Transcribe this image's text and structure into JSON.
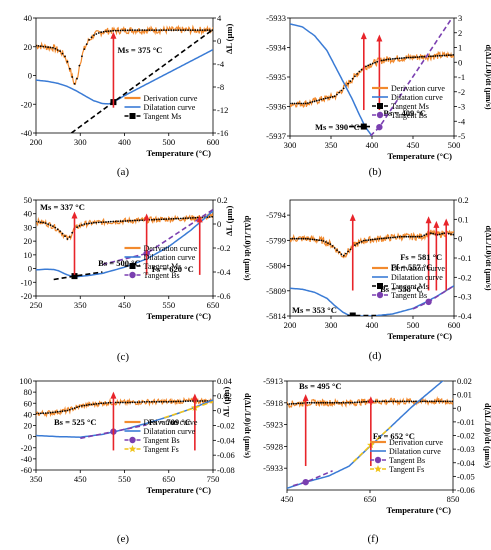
{
  "figure": {
    "colors": {
      "derivation": "#f28a2e",
      "dilatation": "#3a7bd5",
      "dots": "#000000",
      "annotation_arrow": "#e8242a",
      "tangent_ms": "#000000",
      "tangent_bs": "#7a3fb0",
      "tangent_fs": "#f0c419"
    }
  },
  "chart_data": [
    {
      "type": "line",
      "panel_label": "(a)",
      "xlabel": "Temperature (°C)",
      "ylabel": "ΔL (µm)",
      "y2label": "",
      "xlim": [
        200,
        600
      ],
      "ylim": [
        -40,
        40
      ],
      "y2lim": [
        -16,
        4
      ],
      "xticks": [
        "200",
        "300",
        "400",
        "500",
        "600"
      ],
      "yticks": [
        "-40",
        "-20",
        "0",
        "20",
        "40"
      ],
      "y2ticks": [
        "-16",
        "-12",
        "-8",
        "-4",
        "0",
        "4"
      ],
      "series": [
        {
          "name": "Derivation curve",
          "axis": "y2",
          "style": "noisy",
          "x": [
            200,
            220,
            240,
            255,
            265,
            272,
            278,
            283,
            288,
            293,
            300,
            310,
            320,
            330,
            345,
            360,
            380,
            420,
            480,
            540,
            600
          ],
          "y": [
            -0.8,
            -1,
            -1.2,
            -1.8,
            -2.6,
            -3.8,
            -5.2,
            -6.6,
            -7.6,
            -6.5,
            -3.5,
            -1.2,
            0.2,
            1,
            1.5,
            1.7,
            1.8,
            1.9,
            1.9,
            1.9,
            1.9
          ]
        },
        {
          "name": "Dilatation curve",
          "axis": "y",
          "style": "smooth",
          "x": [
            200,
            225,
            250,
            270,
            290,
            310,
            330,
            350,
            365,
            375,
            400,
            450,
            500,
            550,
            600
          ],
          "y": [
            -3.2,
            -4,
            -5.5,
            -7.5,
            -10.5,
            -14,
            -17.5,
            -19.5,
            -19.8,
            -18.5,
            -14,
            -6,
            2,
            10,
            18
          ]
        },
        {
          "name": "Tangent Ms",
          "axis": "y",
          "style": "tangent",
          "x": [
            280,
            375,
            600
          ],
          "y": [
            -40,
            -18.5,
            32
          ]
        }
      ],
      "annotations": [
        {
          "text": "Ms = 375 °C",
          "arrow_x": 375
        }
      ]
    },
    {
      "type": "line",
      "panel_label": "(b)",
      "xlabel": "Temperature (°C)",
      "ylabel": "ΔL (µm)",
      "y2label": "d(ΔL/L0)/dt (µm/s)",
      "xlim": [
        300,
        500
      ],
      "ylim": [
        -5937,
        -5933
      ],
      "y2lim": [
        -5,
        3
      ],
      "xticks": [
        "300",
        "350",
        "400",
        "450",
        "500"
      ],
      "yticks": [
        "-5937",
        "-5936",
        "-5935",
        "-5934",
        "-5933"
      ],
      "y2ticks": [
        "-5",
        "-4",
        "-3",
        "-2",
        "-1",
        "0",
        "1",
        "2",
        "3"
      ],
      "series": [
        {
          "name": "Derivation curve",
          "axis": "y2",
          "style": "noisy",
          "x": [
            300,
            320,
            340,
            355,
            365,
            375,
            385,
            392,
            400,
            410,
            420,
            440,
            470,
            500
          ],
          "y": [
            -2.8,
            -2.8,
            -2.5,
            -2.3,
            -1.8,
            -1.2,
            -0.6,
            -0.3,
            -0.1,
            0.1,
            0.2,
            0.3,
            0.4,
            0.5
          ]
        },
        {
          "name": "Dilatation curve",
          "axis": "y",
          "style": "smooth",
          "x": [
            300,
            315,
            330,
            345,
            360,
            375,
            385,
            392,
            400
          ],
          "y": [
            -5933.2,
            -5933.3,
            -5933.6,
            -5934.1,
            -5934.9,
            -5935.7,
            -5936.3,
            -5936.7,
            -5937
          ]
        },
        {
          "name": "Tangent Ms",
          "axis": "y",
          "style": "tangent",
          "x": [
            372,
            390,
            398
          ],
          "y": [
            -5936.68,
            -5936.68,
            -5936.68
          ]
        },
        {
          "name": "Tangent Bs",
          "axis": "y",
          "style": "tangent",
          "x": [
            398,
            409,
            500
          ],
          "y": [
            -5937,
            -5936.7,
            -5932.9
          ]
        }
      ],
      "annotations": [
        {
          "text": "Ms = 390 °C",
          "arrow_x": 390
        },
        {
          "text": "Bs = 409 °C",
          "arrow_x": 409
        }
      ]
    },
    {
      "type": "line",
      "panel_label": "(c)",
      "xlabel": "Temperature (°C)",
      "ylabel": "ΔL (µm)",
      "y2label": "d(ΔL/L0)/dt (µm/s)",
      "xlim": [
        250,
        650
      ],
      "ylim": [
        -20,
        50
      ],
      "y2lim": [
        -0.6,
        0.2
      ],
      "xticks": [
        "250",
        "350",
        "450",
        "550",
        "650"
      ],
      "yticks": [
        "-20",
        "-10",
        "0",
        "10",
        "20",
        "30",
        "40",
        "50"
      ],
      "y2ticks": [
        "-0.6",
        "-0.4",
        "-0.2",
        "0",
        "0.2"
      ],
      "series": [
        {
          "name": "Derivation curve",
          "axis": "y2",
          "style": "noisy",
          "x": [
            250,
            270,
            290,
            305,
            315,
            322,
            328,
            335,
            345,
            360,
            380,
            420,
            480,
            540,
            600,
            650
          ],
          "y": [
            0.02,
            0.01,
            -0.02,
            -0.06,
            -0.1,
            -0.13,
            -0.1,
            -0.05,
            -0.02,
            0,
            0.01,
            0.02,
            0.03,
            0.04,
            0.05,
            0.06
          ]
        },
        {
          "name": "Dilatation curve",
          "axis": "y",
          "style": "smooth",
          "x": [
            250,
            270,
            290,
            300,
            310,
            320,
            330,
            345,
            370,
            400,
            450,
            500,
            550,
            600,
            650
          ],
          "y": [
            -1,
            -0.5,
            -0.7,
            -1.5,
            -3,
            -4.5,
            -5.5,
            -5.8,
            -5,
            -3.5,
            1,
            7,
            16,
            28,
            42
          ]
        },
        {
          "name": "Tangent Ms",
          "axis": "y",
          "style": "tangent",
          "x": [
            290,
            337,
            400
          ],
          "y": [
            -8,
            -5.5,
            -2.5
          ]
        },
        {
          "name": "Tangent Bs",
          "axis": "y",
          "style": "tangent",
          "x": [
            400,
            500,
            650
          ],
          "y": [
            3,
            11,
            43
          ]
        }
      ],
      "annotations": [
        {
          "text": "Ms = 337 °C",
          "arrow_x": 337
        },
        {
          "text": "Bs = 500 °C",
          "arrow_x": 500
        },
        {
          "text": "Fs = 620 °C",
          "arrow_x": 620
        }
      ]
    },
    {
      "type": "line",
      "panel_label": "(d)",
      "xlabel": "Temperature (°C)",
      "ylabel": "ΔL (µm)",
      "y2label": "d(ΔL/L0)/dt (µm/s)",
      "xlim": [
        200,
        600
      ],
      "ylim": [
        -5814,
        -5791
      ],
      "y2lim": [
        -0.4,
        0.2
      ],
      "xticks": [
        "200",
        "300",
        "400",
        "500",
        "600"
      ],
      "yticks": [
        "-5814",
        "-5809",
        "-5804",
        "-5799",
        "-5794"
      ],
      "y2ticks": [
        "-0.4",
        "-0.3",
        "-0.2",
        "-0.1",
        "0",
        "0.1",
        "0.2"
      ],
      "series": [
        {
          "name": "Derivation curve",
          "axis": "y2",
          "style": "noisy",
          "x": [
            200,
            240,
            280,
            300,
            315,
            330,
            345,
            360,
            380,
            420,
            470,
            520,
            540,
            560,
            580,
            600
          ],
          "y": [
            0,
            0,
            -0.01,
            -0.03,
            -0.06,
            -0.09,
            -0.06,
            -0.03,
            -0.01,
            0,
            0.01,
            0.01,
            0.03,
            0.02,
            0.03,
            0.02
          ]
        },
        {
          "name": "Dilatation curve",
          "axis": "y",
          "style": "smooth",
          "x": [
            200,
            230,
            260,
            290,
            310,
            330,
            345,
            355,
            400,
            450,
            500,
            530,
            560,
            600
          ],
          "y": [
            -5808.5,
            -5808.7,
            -5809.3,
            -5810.5,
            -5812,
            -5813.3,
            -5813.9,
            -5814,
            -5814,
            -5813.6,
            -5812.5,
            -5811.3,
            -5810,
            -5808
          ]
        },
        {
          "name": "Tangent Ms",
          "axis": "y",
          "style": "tangent",
          "x": [
            340,
            353,
            410
          ],
          "y": [
            -5813.9,
            -5813.9,
            -5813.9
          ]
        },
        {
          "name": "Tangent Bs",
          "axis": "y",
          "style": "tangent",
          "x": [
            500,
            538,
            600
          ],
          "y": [
            -5812.6,
            -5811.2,
            -5808
          ]
        }
      ],
      "annotations": [
        {
          "text": "Ms = 353 °C",
          "arrow_x": 353
        },
        {
          "text": "Bs = 538 °C",
          "arrow_x": 538
        },
        {
          "text": "Fs = 581 °C",
          "arrow_x": 581
        },
        {
          "text": "Ff = 557 °C",
          "arrow_x": 557
        }
      ]
    },
    {
      "type": "line",
      "panel_label": "(e)",
      "xlabel": "Temperature (°C)",
      "ylabel": "ΔL (µm)",
      "y2label": "d(ΔL/L0)/dt (µm/s)",
      "xlim": [
        350,
        750
      ],
      "ylim": [
        -60,
        100
      ],
      "y2lim": [
        -0.08,
        0.04
      ],
      "xticks": [
        "350",
        "450",
        "550",
        "650",
        "750"
      ],
      "yticks": [
        "-60",
        "-40",
        "-20",
        "0",
        "20",
        "40",
        "60",
        "80",
        "100"
      ],
      "y2ticks": [
        "-0.08",
        "-0.06",
        "-0.04",
        "-0.02",
        "0",
        "0.02",
        "0.04"
      ],
      "series": [
        {
          "name": "Derivation curve",
          "axis": "y2",
          "style": "noisy",
          "x": [
            350,
            380,
            420,
            450,
            470,
            500,
            525,
            560,
            600,
            650,
            700,
            750
          ],
          "y": [
            -0.004,
            -0.003,
            0,
            0.006,
            0.008,
            0.01,
            0.011,
            0.011,
            0.012,
            0.012,
            0.013,
            0.013
          ]
        },
        {
          "name": "Dilatation curve",
          "axis": "y",
          "style": "smooth",
          "x": [
            350,
            400,
            450,
            500,
            550,
            600,
            650,
            700,
            750
          ],
          "y": [
            2,
            0,
            -1,
            4,
            13,
            24,
            36,
            50,
            66
          ]
        },
        {
          "name": "Tangent Bs",
          "axis": "y",
          "style": "tangent",
          "x": [
            450,
            525,
            600
          ],
          "y": [
            -3,
            9,
            21
          ]
        },
        {
          "name": "Tangent Fs",
          "axis": "y",
          "style": "tangent",
          "x": [
            640,
            709,
            750
          ],
          "y": [
            34,
            52,
            63
          ]
        }
      ],
      "annotations": [
        {
          "text": "Bs = 525 °C",
          "arrow_x": 525
        },
        {
          "text": "Fs = 709 °C",
          "arrow_x": 709
        }
      ]
    },
    {
      "type": "line",
      "panel_label": "(f)",
      "xlabel": "Temperature (°C)",
      "ylabel": "ΔL (µm)",
      "y2label": "d(ΔL/L0)/dt (µm/s)",
      "xlim": [
        450,
        850
      ],
      "ylim": [
        -5938,
        -5913
      ],
      "y2lim": [
        -0.06,
        0.02
      ],
      "xticks": [
        "450",
        "650",
        "850"
      ],
      "yticks": [
        "-5933",
        "-5928",
        "-5923",
        "-5918",
        "-5913"
      ],
      "y2ticks": [
        "-0.06",
        "-0.05",
        "-0.04",
        "-0.03",
        "-0.02",
        "-0.01",
        "0",
        "0.01",
        "0.02"
      ],
      "series": [
        {
          "name": "Derivation curve",
          "axis": "y2",
          "style": "noisy",
          "x": [
            450,
            500,
            550,
            600,
            650,
            700,
            750,
            800,
            850
          ],
          "y": [
            0.003,
            0.004,
            0.004,
            0.004,
            0.005,
            0.005,
            0.005,
            0.005,
            0.005
          ]
        },
        {
          "name": "Dilatation curve",
          "axis": "y",
          "style": "smooth",
          "x": [
            450,
            495,
            550,
            600,
            650,
            700,
            750,
            800,
            850
          ],
          "y": [
            -5937.6,
            -5936.2,
            -5934.8,
            -5932.5,
            -5928,
            -5923.5,
            -5919,
            -5915,
            -5911
          ]
        },
        {
          "name": "Tangent Bs",
          "axis": "y",
          "style": "tangent",
          "x": [
            465,
            495,
            560
          ],
          "y": [
            -5937,
            -5936.2,
            -5933.6
          ]
        },
        {
          "name": "Tangent Fs",
          "axis": "y",
          "style": "tangent",
          "x": [
            610,
            652,
            700
          ],
          "y": [
            -5931.5,
            -5927.7,
            -5923.5
          ]
        }
      ],
      "annotations": [
        {
          "text": "Bs = 495 °C",
          "arrow_x": 495
        },
        {
          "text": "Fs = 652 °C",
          "arrow_x": 652
        }
      ]
    }
  ]
}
